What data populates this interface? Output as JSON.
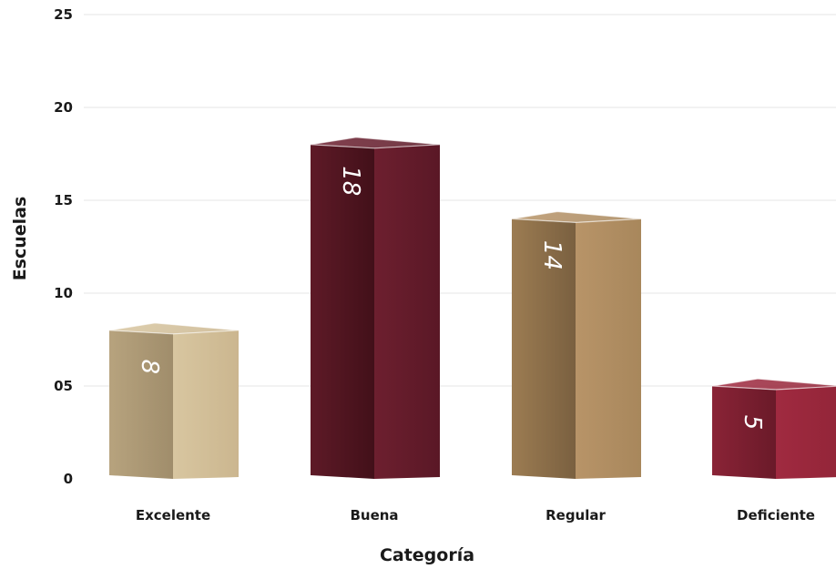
{
  "chart_data": {
    "type": "bar",
    "title": "",
    "xlabel": "Categoría",
    "ylabel": "Escuelas",
    "categories": [
      "Excelente",
      "Buena",
      "Regular",
      "Deficiente"
    ],
    "values": [
      8,
      18,
      14,
      5
    ],
    "value_labels": [
      "8",
      "18",
      "14",
      "5"
    ],
    "ylim": [
      0,
      25
    ],
    "yticks": [
      0,
      5,
      10,
      15,
      20,
      25
    ],
    "ytick_labels": [
      "0",
      "05",
      "10",
      "15",
      "20",
      "25"
    ],
    "grid": true,
    "legend": "none",
    "bar_style": "3d-box",
    "colors": [
      "#c9b48f",
      "#6b1f2e",
      "#a8875a",
      "#8c2236"
    ]
  }
}
